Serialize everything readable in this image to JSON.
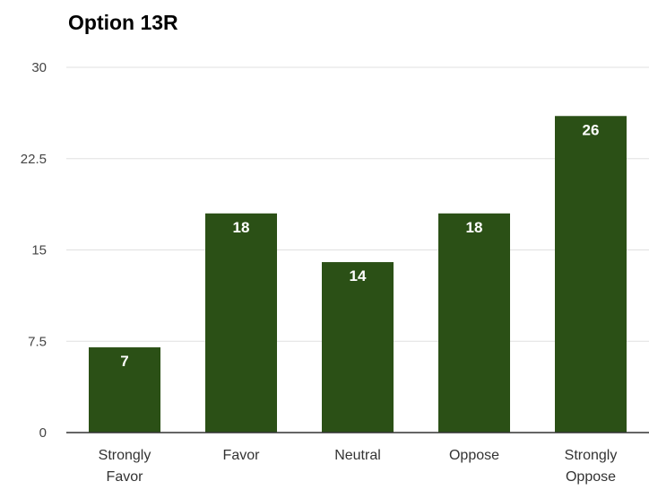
{
  "chart_data": {
    "type": "bar",
    "title": "Option 13R",
    "xlabel": "",
    "ylabel": "",
    "categories": [
      [
        "Strongly",
        "Favor"
      ],
      [
        "Favor"
      ],
      [
        "Neutral"
      ],
      [
        "Oppose"
      ],
      [
        "Strongly",
        "Oppose"
      ]
    ],
    "values": [
      7,
      18,
      14,
      18,
      26
    ],
    "data_labels": [
      "7",
      "18",
      "14",
      "18",
      "26"
    ],
    "ylim": [
      0,
      30
    ],
    "yticks": [
      "0",
      "7.5",
      "15",
      "22.5",
      "30"
    ],
    "grid": true,
    "legend": "none",
    "bar_color": "#2b5016",
    "grid_color": "#e0e0e0",
    "axis_color": "#333333"
  }
}
